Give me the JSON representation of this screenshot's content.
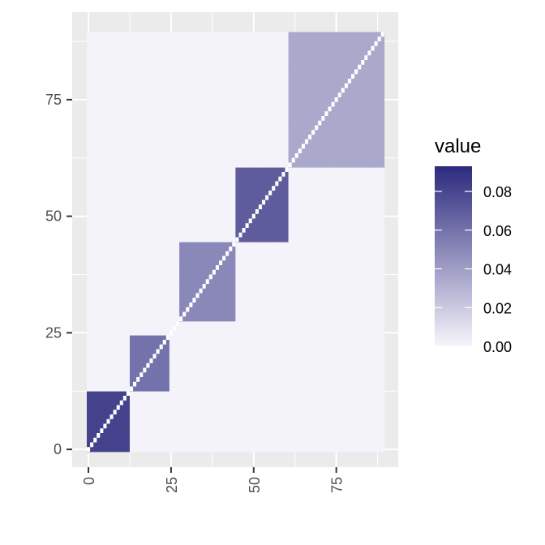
{
  "chart_data": {
    "type": "heatmap",
    "title": "",
    "xlabel": "",
    "ylabel": "",
    "n": 90,
    "xlim": [
      0,
      89
    ],
    "ylim": [
      0,
      89
    ],
    "x_ticks": [
      {
        "value": 0,
        "label": "0"
      },
      {
        "value": 25,
        "label": "25"
      },
      {
        "value": 50,
        "label": "50"
      },
      {
        "value": 75,
        "label": "75"
      }
    ],
    "y_ticks": [
      {
        "value": 0,
        "label": "0"
      },
      {
        "value": 25,
        "label": "25"
      },
      {
        "value": 50,
        "label": "50"
      },
      {
        "value": 75,
        "label": "75"
      }
    ],
    "grid": true,
    "diagonal_color": "#ffffff",
    "blocks": [
      {
        "range": [
          0,
          12
        ],
        "value": 0.082
      },
      {
        "range": [
          12,
          24
        ],
        "value": 0.06
      },
      {
        "range": [
          28,
          44
        ],
        "value": 0.05
      },
      {
        "range": [
          44,
          60
        ],
        "value": 0.07
      },
      {
        "range": [
          61,
          89
        ],
        "value": 0.035
      }
    ],
    "background_value": 0.001,
    "legend": {
      "title": "value",
      "position": "right",
      "range": [
        0,
        0.093
      ],
      "ticks": [
        {
          "value": 0.08,
          "label": "0.08"
        },
        {
          "value": 0.06,
          "label": "0.06"
        },
        {
          "value": 0.04,
          "label": "0.04"
        },
        {
          "value": 0.02,
          "label": "0.02"
        },
        {
          "value": 0.0,
          "label": "0.00"
        }
      ]
    },
    "colors": {
      "low": "#f6f5fb",
      "high": "#2c2a7e",
      "panel": "#ebebeb",
      "gridline": "#ffffff",
      "tick_text": "#4d4d4d"
    }
  }
}
